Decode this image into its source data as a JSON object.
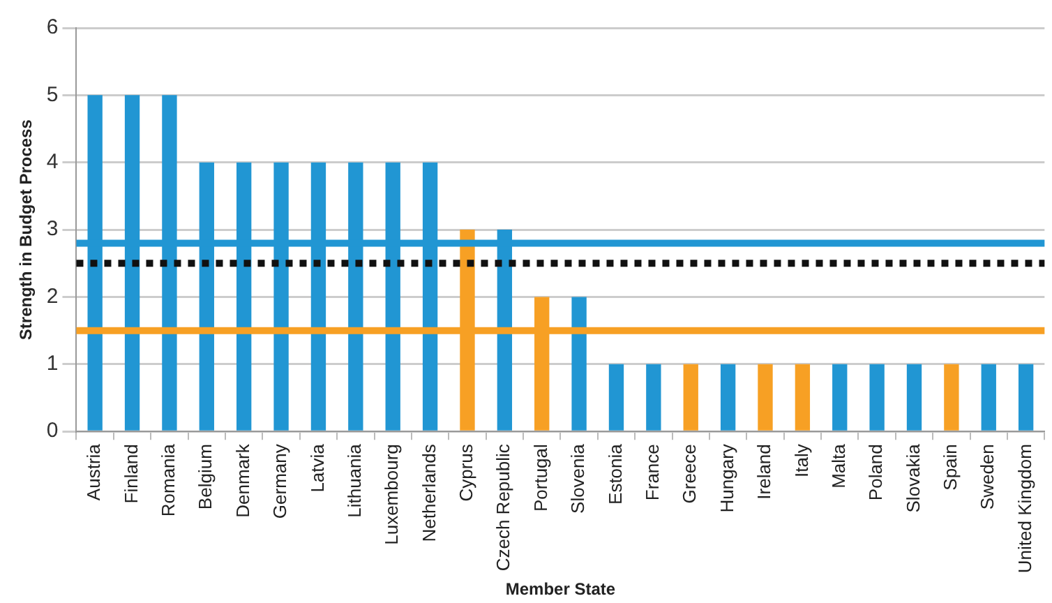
{
  "chart_data": {
    "type": "bar",
    "xlabel": "Member State",
    "ylabel": "Strength in Budget Process",
    "categories": [
      "Austria",
      "Finland",
      "Romania",
      "Belgium",
      "Denmark",
      "Germany",
      "Latvia",
      "Lithuania",
      "Luxembourg",
      "Netherlands",
      "Cyprus",
      "Czech Republic",
      "Portugal",
      "Slovenia",
      "Estonia",
      "France",
      "Greece",
      "Hungary",
      "Ireland",
      "Italy",
      "Malta",
      "Poland",
      "Slovakia",
      "Spain",
      "Sweden",
      "United Kingdom"
    ],
    "values": [
      5,
      5,
      5,
      4,
      4,
      4,
      4,
      4,
      4,
      4,
      3,
      3,
      2,
      2,
      1,
      1,
      1,
      1,
      1,
      1,
      1,
      1,
      1,
      1,
      1,
      1
    ],
    "colors": [
      "#2196d3",
      "#2196d3",
      "#2196d3",
      "#2196d3",
      "#2196d3",
      "#2196d3",
      "#2196d3",
      "#2196d3",
      "#2196d3",
      "#2196d3",
      "#f7a024",
      "#2196d3",
      "#f7a024",
      "#2196d3",
      "#2196d3",
      "#2196d3",
      "#f7a024",
      "#2196d3",
      "#f7a024",
      "#f7a024",
      "#2196d3",
      "#2196d3",
      "#2196d3",
      "#f7a024",
      "#2196d3",
      "#2196d3"
    ],
    "ylim": [
      0,
      6
    ],
    "yticks": [
      0,
      1,
      2,
      3,
      4,
      5,
      6
    ],
    "grid": "y",
    "legend": false,
    "ref_lines": [
      {
        "axis": "y",
        "value": 2.8,
        "color": "#2196d3",
        "line_style": "solid"
      },
      {
        "axis": "y",
        "value": 2.5,
        "color": "#111111",
        "line_style": "dotted"
      },
      {
        "axis": "y",
        "value": 1.5,
        "color": "#f7a024",
        "line_style": "solid"
      }
    ]
  }
}
